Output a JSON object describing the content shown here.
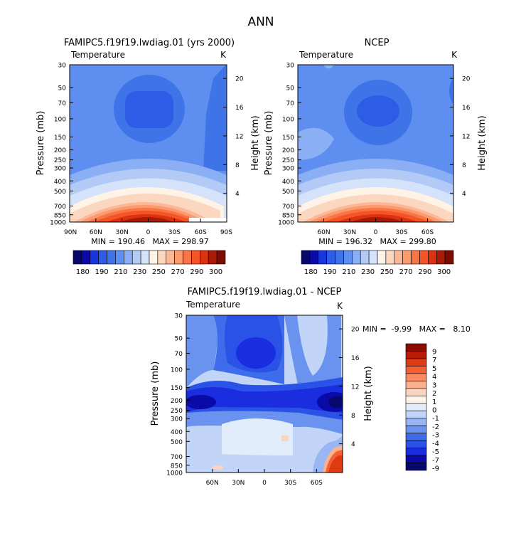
{
  "figure": {
    "title": "ANN"
  },
  "colors": {
    "abs_scale": [
      "#08086b",
      "#0a0aa8",
      "#1a35de",
      "#2e5ce6",
      "#3e74e8",
      "#5e8ff0",
      "#8aaff5",
      "#b3caf7",
      "#d4e3fa",
      "#fff3e8",
      "#fcd7c0",
      "#fbb797",
      "#fb9a6c",
      "#f97547",
      "#f55426",
      "#db3212",
      "#a81b08",
      "#7a0c02"
    ],
    "diff_scale": [
      "#08086b",
      "#0a0aa8",
      "#1a2ee0",
      "#2b52e6",
      "#3e6cea",
      "#6a92ef",
      "#98b5f4",
      "#c2d5f8",
      "#e1edfb",
      "#fff4ea",
      "#fcd4bd",
      "#fbb08f",
      "#f98b62",
      "#f55f34",
      "#e03a14",
      "#b91c06",
      "#8c0c02"
    ],
    "line": "#000000"
  },
  "chart_data": [
    {
      "type": "heatmap",
      "panel": "top-left",
      "title": "FAMIPC5.f19f19.lwdiag.01 (yrs 2000)",
      "variable": "Temperature",
      "units": "K",
      "ylabel": "Pressure (mb)",
      "y2label": "Height (km)",
      "xticks": [
        "90N",
        "60N",
        "30N",
        "0",
        "30S",
        "60S",
        "90S"
      ],
      "yticks": [
        30,
        50,
        70,
        100,
        150,
        200,
        250,
        300,
        400,
        500,
        700,
        850,
        1000
      ],
      "y2ticks": [
        20,
        16,
        12,
        8,
        4
      ],
      "stats": "MIN = 190.46   MAX = 298.97",
      "min": 190.46,
      "max": 298.97,
      "colorbar_labels": [
        180,
        190,
        210,
        230,
        250,
        270,
        290,
        300
      ]
    },
    {
      "type": "heatmap",
      "panel": "top-right",
      "title": "NCEP",
      "variable": "Temperature",
      "units": "K",
      "ylabel": "Pressure (mb)",
      "y2label": "Height (km)",
      "xticks": [
        "60N",
        "30N",
        "0",
        "30S",
        "60S"
      ],
      "yticks": [
        30,
        50,
        70,
        100,
        150,
        200,
        250,
        300,
        400,
        500,
        700,
        850,
        1000
      ],
      "y2ticks": [
        20,
        16,
        12,
        8,
        4
      ],
      "stats": "MIN = 196.32   MAX = 299.80",
      "min": 196.32,
      "max": 299.8,
      "colorbar_labels": [
        180,
        190,
        210,
        230,
        250,
        270,
        290,
        300
      ]
    },
    {
      "type": "heatmap",
      "panel": "bottom",
      "title": "FAMIPC5.f19f19.lwdiag.01 - NCEP",
      "variable": "Temperature",
      "units": "K",
      "ylabel": "Pressure (mb)",
      "y2label": "Height (km)",
      "xticks": [
        "60N",
        "30N",
        "0",
        "30S",
        "60S"
      ],
      "yticks": [
        30,
        50,
        70,
        100,
        150,
        200,
        250,
        300,
        400,
        500,
        700,
        850,
        1000
      ],
      "y2ticks": [
        20,
        16,
        12,
        8,
        4
      ],
      "stats": "MIN =  -9.99   MAX =   8.10",
      "min": -9.99,
      "max": 8.1,
      "colorbar_labels": [
        9,
        7,
        5,
        4,
        3,
        2,
        1,
        0,
        -1,
        -2,
        -3,
        -4,
        -5,
        -7,
        -9
      ]
    }
  ]
}
